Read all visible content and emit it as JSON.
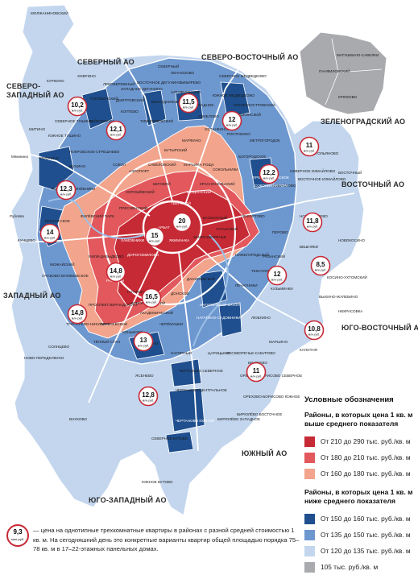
{
  "colors": {
    "dark_red": "#c62a35",
    "mid_red": "#e2585c",
    "light_red": "#f2a48c",
    "dark_blue": "#1f4f8e",
    "mid_blue": "#6d97cf",
    "light_blue": "#c3d6ee",
    "gray": "#a9aaad",
    "road": "#ffffff"
  },
  "admin_areas": {
    "north": "СЕВЕРНЫЙ АО",
    "north_east": "СЕВЕРО-ВОСТОЧНЫЙ АО",
    "north_west_1": "СЕВЕРО-",
    "north_west_2": "ЗАПАДНЫЙ АО",
    "zelenograd": "ЗЕЛЕНОГРАДСКИЙ АО",
    "east": "ВОСТОЧНЫЙ АО",
    "west": "ЗАПАДНЫЙ АО",
    "south_east": "ЮГО-ВОСТОЧНЫЙ АО",
    "south": "ЮЖНЫЙ АО",
    "south_west": "ЮГО-ЗАПАДНЫЙ АО"
  },
  "districts": [
    "МОЛЖАНИНОВСКИЙ",
    "ХОВРИНО",
    "ЛЕВОБЕРЕЖНЫЙ",
    "ЛИАНОЗОВО",
    "БИБИРЕВО",
    "АЛТУФЬЕВСКИЙ",
    "СЕВЕРНЫЙ",
    "СЕВЕРНОЕ МЕДВЕДКОВО",
    "ЮЖНОЕ МЕДВЕДКОВО",
    "ЛОСИНООСТРОВСКИЙ",
    "БАБУШКИНСКИЙ",
    "ОТРАДНОЕ",
    "СВИБЛОВО",
    "МЕТРОГОРОДОК",
    "ГОЛЬЯНОВО",
    "МИТИНО",
    "КУРКИНО",
    "ВОЙКОВСКИЙ",
    "ГОЛОВИНСКИЙ",
    "КОПТЕВО",
    "ТИМИРЯЗЕВСКИЙ",
    "ОСТАНКИНСКИЙ",
    "РОСТОКИНО",
    "БОГОРОДСКОЕ",
    "СОКОЛЬНИКИ",
    "ПРЕОБРАЖЕНСКОЕ",
    "ИЗМАЙЛОВО",
    "ПОКРОВСКОЕ-СТРЕШНЕВО",
    "СТРОГИНО",
    "ЩУКИНО",
    "СОКОЛ",
    "АЭРОПОРТ",
    "САВЕЛОВСКИЙ",
    "МАРЬИНА РОЩА",
    "ХОРОШЁВО-МНЁВНИКИ",
    "БЕГОВОЙ",
    "ХОРОШЁВСКИЙ",
    "КРЫЛАТСКОЕ",
    "КУНЦЕВО",
    "ФИЛЁВСКИЙ ПАРК",
    "ПРЕСНЕНСКИЙ",
    "ТВЕРСКОЙ",
    "МЕЩАНСКИЙ",
    "КРАСНОСЕЛЬСКИЙ",
    "БАСМАННЫЙ",
    "АРБАТ",
    "ХАМОВНИКИ",
    "ЯКИМАНКА",
    "ЗАМОСКВОРЕЧЬЕ",
    "ТАГАНСКИЙ",
    "ЛЕФОРТОВО",
    "НИЖЕГОРОДСКИЙ",
    "ПЕРОВО",
    "НОВОГИРЕЕВО",
    "ВЕШНЯКИ",
    "КОСИНО-УХТОМСКИЙ",
    "РЯЗАНСКИЙ",
    "ТЕКСТИЛЬЩИКИ",
    "ПЕЧАТНИКИ",
    "КУЗЬМИНКИ",
    "ВЫХИНО-ЖУЛЕБИНО",
    "НЕКРАСОВКА",
    "МАРЬИНО",
    "КАПОТНЯ",
    "ЛЮБЛИНО",
    "РАМЕНКИ",
    "ОЧАКОВО-МАТВЕЕВСКОЕ",
    "ТРОПАРЕВО-НИКУЛИНО",
    "ПРОСПЕКТ ВЕРНАДСКОГО",
    "ГАГАРИНСКИЙ",
    "ЛОМОНОСОВСКИЙ",
    "АКАДЕМИЧЕСКИЙ",
    "ОБРУЧЕВСКИЙ",
    "ЧЕРЁМУШКИ",
    "КОНЬКОВО",
    "ТЁПЛЫЙ СТАН",
    "ДОНСКОЙ",
    "ДАНИЛОВСКИЙ",
    "НАГАТИНСКИЙ ЗАТОН",
    "НАГАТИНО-САДОВНИКИ",
    "ЗЮЗИНО",
    "ЧЕРТАНОВО СЕВЕРНОЕ",
    "ЧЕРТАНОВО ЦЕНТРАЛЬНОЕ",
    "ЧЕРТАНОВО ЮЖНОЕ",
    "ЦАРИЦЫНО",
    "МОСКВОРЕЧЬЕ-САБУРОВО",
    "ОРЕХОВО-БОРИСОВО СЕВЕРНОЕ",
    "ОРЕХОВО-БОРИСОВО ЮЖНОЕ",
    "БРАТЕЕВО",
    "ЯСЕНЕВО",
    "СЕВЕРНОЕ БУТОВО",
    "ЮЖНОЕ БУТОВО",
    "СОЛНЦЕВО",
    "НОВО-ПЕРЕДЕЛКИНО",
    "ВНУКОВО",
    "МОЖАЙСКИЙ",
    "ФИЛИ-ДАВЫДКОВО",
    "ДОРОГОМИЛОВО",
    "МАТУШКИНО-САВЕЛКИ",
    "ПАНФИЛОВСКИЙ",
    "КРЮКОВО",
    "Рублёво",
    "Мякинино",
    "ЗАПАДНОЕ ДЕГУНИНО",
    "ВОСТОЧНОЕ ДЕГУНИНО",
    "ДМИТРОВСКИЙ",
    "БЕСКУДНИКОВСКИЙ",
    "МАРФИНО",
    "БУТЫРСКИЙ",
    "СЕВЕРНОЕ ТУШИНО",
    "ЮЖНОЕ ТУШИНО",
    "ВОСТОЧНЫЙ",
    "СЕВЕРНОЕ ИЗМАЙЛОВО",
    "ВОСТОЧНОЕ ИЗМАЙЛОВО",
    "СОКОЛИНАЯ ГОРА",
    "НАГОРНЫЙ",
    "БИРЮЛЁВО ЗАПАДНОЕ",
    "БИРЮЛЁВО ВОСТОЧНОЕ",
    "НОВОКОСИНО"
  ],
  "prices": [
    {
      "value": "10,2",
      "unit": "млн руб."
    },
    {
      "value": "12,1",
      "unit": "млн руб."
    },
    {
      "value": "11,5",
      "unit": "млн руб."
    },
    {
      "value": "12",
      "unit": "млн руб."
    },
    {
      "value": "11",
      "unit": "млн руб."
    },
    {
      "value": "12,2",
      "unit": "млн руб."
    },
    {
      "value": "12,3",
      "unit": "млн руб."
    },
    {
      "value": "14",
      "unit": "млн руб."
    },
    {
      "value": "20",
      "unit": "млн руб."
    },
    {
      "value": "15",
      "unit": "млн руб."
    },
    {
      "value": "11,8",
      "unit": "млн руб."
    },
    {
      "value": "8,5",
      "unit": "млн руб."
    },
    {
      "value": "14,8",
      "unit": "млн руб."
    },
    {
      "value": "12",
      "unit": "млн руб."
    },
    {
      "value": "16,5",
      "unit": "млн руб."
    },
    {
      "value": "14,8",
      "unit": "млн руб."
    },
    {
      "value": "13",
      "unit": "млн руб."
    },
    {
      "value": "10,8",
      "unit": "млн руб."
    },
    {
      "value": "11",
      "unit": "млн руб."
    },
    {
      "value": "12,8",
      "unit": "млн руб."
    }
  ],
  "legend": {
    "title": "Условные обозначения",
    "above_title": "Районы, в которых цена 1 кв. м выше среднего показателя",
    "above": [
      {
        "color": "#c62a35",
        "label": "От 210 до 290 тыс. руб./кв. м"
      },
      {
        "color": "#e2585c",
        "label": "От 180 до 210 тыс. руб./кв. м"
      },
      {
        "color": "#f2a48c",
        "label": "От 160 до 180 тыс. руб./кв. м"
      }
    ],
    "below_title": "Районы, в которых цена 1 кв. м ниже среднего показателя",
    "below": [
      {
        "color": "#1f4f8e",
        "label": "От 150 до 160 тыс. руб./кв. м"
      },
      {
        "color": "#6d97cf",
        "label": "От 135 до 150 тыс. руб./кв. м"
      },
      {
        "color": "#c3d6ee",
        "label": "От 120 до 135 тыс. руб./кв. м"
      },
      {
        "color": "#a9aaad",
        "label": "105 тыс. руб./кв. м"
      }
    ]
  },
  "note": {
    "badge_value": "9,3",
    "badge_unit": "млн руб.",
    "text": "— цена на однотипные трехкомнатные квартиры в районах с разной средней стоимостью 1 кв. м. На сегодняшний день это конкретные варианты квартир общей площадью порядка 75–78 кв. м в 17–22-этажных панельных домах."
  }
}
